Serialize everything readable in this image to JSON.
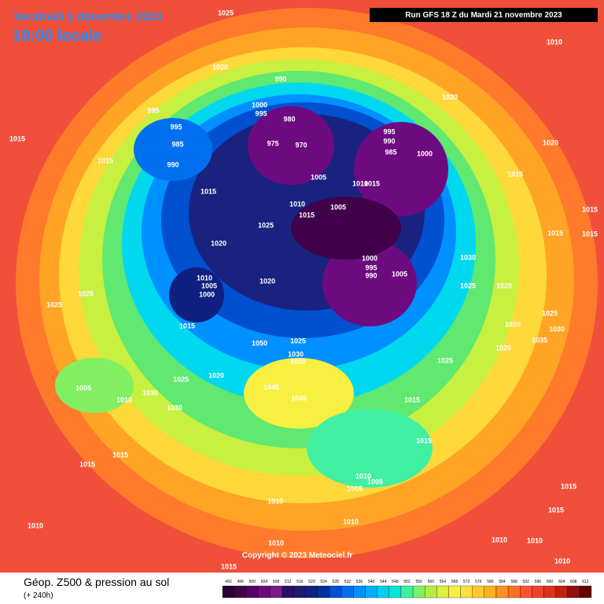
{
  "header": {
    "date": "Vendredi 1 décembre 2023",
    "time": "19:00 locale",
    "run": "Run GFS 18 Z du Mardi 21 novembre 2023",
    "copyright": "Copyright © 2023 Meteociel.fr"
  },
  "footer": {
    "title": "Géop. Z500 & pression au sol",
    "lead": "(+ 240h)"
  },
  "isobar_labels": [
    1025,
    1010,
    1020,
    990,
    1020,
    995,
    1000,
    995,
    980,
    995,
    995,
    1015,
    975,
    970,
    990,
    1020,
    985,
    985,
    1000,
    1015,
    990,
    1005,
    1015,
    1010,
    1015,
    1015,
    1010,
    1005,
    1015,
    1015,
    1025,
    1015,
    1015,
    1020,
    1030,
    1000,
    995,
    990,
    1005,
    1010,
    1005,
    1020,
    1000,
    1025,
    1020,
    1025,
    1025,
    1025,
    1015,
    1020,
    1030,
    1050,
    1025,
    1020,
    1035,
    1030,
    1035,
    1025,
    1025,
    1020,
    1005,
    1030,
    1045,
    1040,
    1010,
    1015,
    1030,
    1015,
    1015,
    1015,
    1010,
    1005,
    1005,
    1015,
    1010,
    1015,
    1010,
    1010,
    1010,
    1010,
    1010,
    1010,
    1015
  ],
  "scale": {
    "values": [
      492,
      496,
      500,
      504,
      508,
      512,
      516,
      520,
      524,
      528,
      532,
      536,
      540,
      544,
      548,
      552,
      556,
      560,
      564,
      568,
      572,
      576,
      580,
      584,
      588,
      592,
      596,
      600,
      604,
      608,
      612
    ],
    "colors": [
      "#2b0030",
      "#40004a",
      "#560066",
      "#6e0a80",
      "#7a1a8a",
      "#2a1060",
      "#1a1a70",
      "#102080",
      "#0030a0",
      "#0050d0",
      "#0070f0",
      "#0090ff",
      "#00b0ff",
      "#00d0f0",
      "#00e8d0",
      "#40f0a0",
      "#80f060",
      "#b0f040",
      "#e0f040",
      "#f8f040",
      "#ffe040",
      "#ffc830",
      "#ffb020",
      "#ff9020",
      "#ff7020",
      "#ff5030",
      "#f04030",
      "#e03020",
      "#c02010",
      "#901010",
      "#600000"
    ]
  }
}
